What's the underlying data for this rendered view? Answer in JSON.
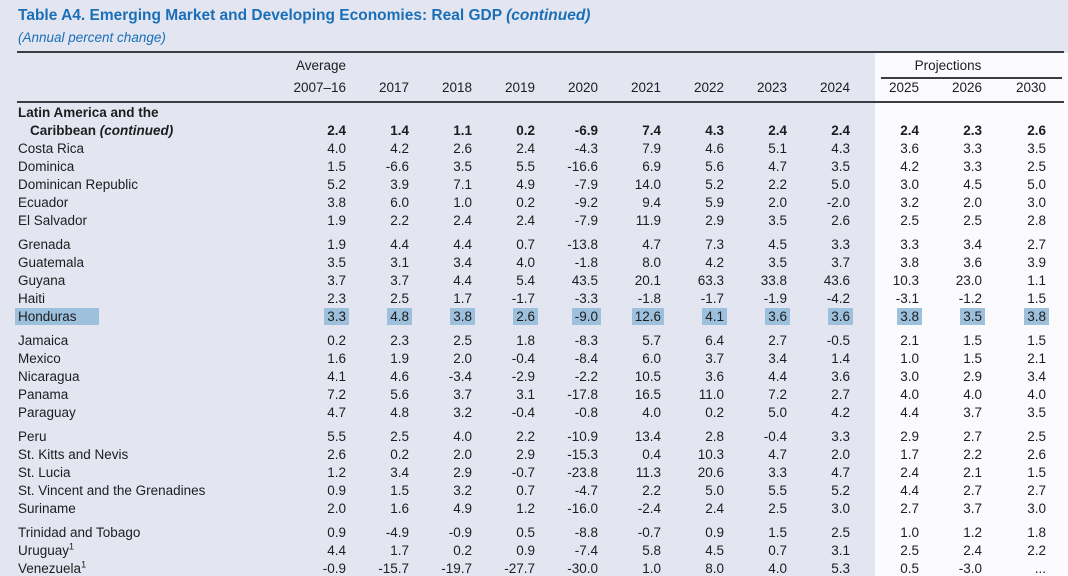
{
  "title": {
    "main": "Table A4. Emerging Market and Developing Economies: Real GDP",
    "continued": "(continued)"
  },
  "subtitle": "(Annual percent change)",
  "header": {
    "average_label": "Average",
    "average_period": "2007–16",
    "years": [
      "2017",
      "2018",
      "2019",
      "2020",
      "2021",
      "2022",
      "2023",
      "2024"
    ],
    "projections_label": "Projections",
    "projection_years": [
      "2025",
      "2026",
      "2030"
    ]
  },
  "colors": {
    "page_bg": "#e3e6f0",
    "projections_band_bg": "#fbfbfd",
    "title_blue": "#1a6fb8",
    "rule": "#3c3c44",
    "highlight": "#9dc0dc"
  },
  "rows": [
    {
      "line1": "Latin America and the",
      "name": "Caribbean",
      "name_italic": "(continued)",
      "bold": true,
      "values": [
        "2.4",
        "1.4",
        "1.1",
        "0.2",
        "-6.9",
        "7.4",
        "4.3",
        "2.4",
        "2.4",
        "2.4",
        "2.3",
        "2.6"
      ]
    },
    {
      "name": "Costa Rica",
      "values": [
        "4.0",
        "4.2",
        "2.6",
        "2.4",
        "-4.3",
        "7.9",
        "4.6",
        "5.1",
        "4.3",
        "3.6",
        "3.3",
        "3.5"
      ]
    },
    {
      "name": "Dominica",
      "values": [
        "1.5",
        "-6.6",
        "3.5",
        "5.5",
        "-16.6",
        "6.9",
        "5.6",
        "4.7",
        "3.5",
        "4.2",
        "3.3",
        "2.5"
      ]
    },
    {
      "name": "Dominican Republic",
      "values": [
        "5.2",
        "3.9",
        "7.1",
        "4.9",
        "-7.9",
        "14.0",
        "5.2",
        "2.2",
        "5.0",
        "3.0",
        "4.5",
        "5.0"
      ]
    },
    {
      "name": "Ecuador",
      "values": [
        "3.8",
        "6.0",
        "1.0",
        "0.2",
        "-9.2",
        "9.4",
        "5.9",
        "2.0",
        "-2.0",
        "3.2",
        "2.0",
        "3.0"
      ]
    },
    {
      "name": "El Salvador",
      "values": [
        "1.9",
        "2.2",
        "2.4",
        "2.4",
        "-7.9",
        "11.9",
        "2.9",
        "3.5",
        "2.6",
        "2.5",
        "2.5",
        "2.8"
      ]
    },
    {
      "name": "Grenada",
      "gap_before": true,
      "values": [
        "1.9",
        "4.4",
        "4.4",
        "0.7",
        "-13.8",
        "4.7",
        "7.3",
        "4.5",
        "3.3",
        "3.3",
        "3.4",
        "2.7"
      ]
    },
    {
      "name": "Guatemala",
      "values": [
        "3.5",
        "3.1",
        "3.4",
        "4.0",
        "-1.8",
        "8.0",
        "4.2",
        "3.5",
        "3.7",
        "3.8",
        "3.6",
        "3.9"
      ]
    },
    {
      "name": "Guyana",
      "values": [
        "3.7",
        "3.7",
        "4.4",
        "5.4",
        "43.5",
        "20.1",
        "63.3",
        "33.8",
        "43.6",
        "10.3",
        "23.0",
        "1.1"
      ]
    },
    {
      "name": "Haiti",
      "values": [
        "2.3",
        "2.5",
        "1.7",
        "-1.7",
        "-3.3",
        "-1.8",
        "-1.7",
        "-1.9",
        "-4.2",
        "-3.1",
        "-1.2",
        "1.5"
      ]
    },
    {
      "name": "Honduras",
      "highlight": true,
      "values": [
        "3.3",
        "4.8",
        "3.8",
        "2.6",
        "-9.0",
        "12.6",
        "4.1",
        "3.6",
        "3.6",
        "3.8",
        "3.5",
        "3.8"
      ]
    },
    {
      "name": "Jamaica",
      "gap_before": true,
      "values": [
        "0.2",
        "2.3",
        "2.5",
        "1.8",
        "-8.3",
        "5.7",
        "6.4",
        "2.7",
        "-0.5",
        "2.1",
        "1.5",
        "1.5"
      ]
    },
    {
      "name": "Mexico",
      "values": [
        "1.6",
        "1.9",
        "2.0",
        "-0.4",
        "-8.4",
        "6.0",
        "3.7",
        "3.4",
        "1.4",
        "1.0",
        "1.5",
        "2.1"
      ]
    },
    {
      "name": "Nicaragua",
      "values": [
        "4.1",
        "4.6",
        "-3.4",
        "-2.9",
        "-2.2",
        "10.5",
        "3.6",
        "4.4",
        "3.6",
        "3.0",
        "2.9",
        "3.4"
      ]
    },
    {
      "name": "Panama",
      "values": [
        "7.2",
        "5.6",
        "3.7",
        "3.1",
        "-17.8",
        "16.5",
        "11.0",
        "7.2",
        "2.7",
        "4.0",
        "4.0",
        "4.0"
      ]
    },
    {
      "name": "Paraguay",
      "values": [
        "4.7",
        "4.8",
        "3.2",
        "-0.4",
        "-0.8",
        "4.0",
        "0.2",
        "5.0",
        "4.2",
        "4.4",
        "3.7",
        "3.5"
      ]
    },
    {
      "name": "Peru",
      "gap_before": true,
      "values": [
        "5.5",
        "2.5",
        "4.0",
        "2.2",
        "-10.9",
        "13.4",
        "2.8",
        "-0.4",
        "3.3",
        "2.9",
        "2.7",
        "2.5"
      ]
    },
    {
      "name": "St. Kitts and Nevis",
      "values": [
        "2.6",
        "0.2",
        "2.0",
        "2.9",
        "-15.3",
        "0.4",
        "10.3",
        "4.7",
        "2.0",
        "1.7",
        "2.2",
        "2.6"
      ]
    },
    {
      "name": "St. Lucia",
      "values": [
        "1.2",
        "3.4",
        "2.9",
        "-0.7",
        "-23.8",
        "11.3",
        "20.6",
        "3.3",
        "4.7",
        "2.4",
        "2.1",
        "1.5"
      ]
    },
    {
      "name": "St. Vincent and the Grenadines",
      "values": [
        "0.9",
        "1.5",
        "3.2",
        "0.7",
        "-4.7",
        "2.2",
        "5.0",
        "5.5",
        "5.2",
        "4.4",
        "2.7",
        "2.7"
      ]
    },
    {
      "name": "Suriname",
      "values": [
        "2.0",
        "1.6",
        "4.9",
        "1.2",
        "-16.0",
        "-2.4",
        "2.4",
        "2.5",
        "3.0",
        "2.7",
        "3.7",
        "3.0"
      ]
    },
    {
      "name": "Trinidad and Tobago",
      "gap_before": true,
      "values": [
        "0.9",
        "-4.9",
        "-0.9",
        "0.5",
        "-8.8",
        "-0.7",
        "0.9",
        "1.5",
        "2.5",
        "1.0",
        "1.2",
        "1.8"
      ]
    },
    {
      "name": "Uruguay",
      "sup": "1",
      "values": [
        "4.4",
        "1.7",
        "0.2",
        "0.9",
        "-7.4",
        "5.8",
        "4.5",
        "0.7",
        "3.1",
        "2.5",
        "2.4",
        "2.2"
      ]
    },
    {
      "name": "Venezuela",
      "sup": "1",
      "values": [
        "-0.9",
        "-15.7",
        "-19.7",
        "-27.7",
        "-30.0",
        "1.0",
        "8.0",
        "4.0",
        "5.3",
        "0.5",
        "-3.0",
        "..."
      ]
    }
  ]
}
